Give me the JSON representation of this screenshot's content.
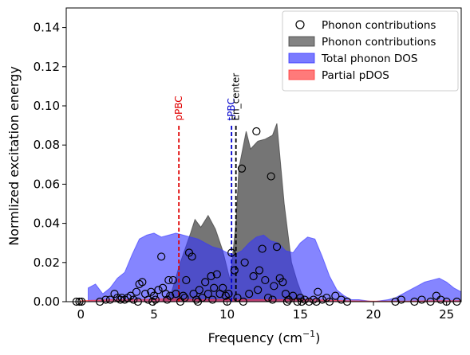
{
  "chart_data": {
    "type": "area",
    "xlabel": "Frequency (cm",
    "xlabel_sup": "−1",
    "xlabel_tail": ")",
    "ylabel": "Normlized excitation energy",
    "xlim": [
      -1,
      26
    ],
    "ylim": [
      0,
      0.15
    ],
    "xticks": [
      0,
      5,
      10,
      15,
      20,
      25
    ],
    "yticks": [
      0.0,
      0.02,
      0.04,
      0.06,
      0.08,
      0.1,
      0.12,
      0.14
    ],
    "xtick_labels": [
      "0",
      "5",
      "10",
      "15",
      "20",
      "25"
    ],
    "ytick_labels": [
      "0.00",
      "0.02",
      "0.04",
      "0.06",
      "0.08",
      "0.10",
      "0.12",
      "0.14"
    ],
    "legend": {
      "position": "top-right",
      "entries": [
        {
          "label": "Phonon contributions",
          "kind": "marker"
        },
        {
          "label": "Phonon contributions",
          "kind": "patch",
          "color": "#404040"
        },
        {
          "label": "Total phonon DOS",
          "kind": "patch",
          "color": "#3333ff"
        },
        {
          "label": "Partial pDOS",
          "kind": "patch",
          "color": "#ff3333"
        }
      ]
    },
    "vlines": [
      {
        "x": 6.7,
        "label": "pPBC",
        "color": "#e00000"
      },
      {
        "x": 10.3,
        "label": "tPBC",
        "color": "#0000cc"
      },
      {
        "x": 10.6,
        "label": "En_center",
        "color": "#000000"
      }
    ],
    "vline_top": 0.09,
    "series": [
      {
        "name": "Phonon contributions",
        "kind": "area",
        "color": "#404040",
        "alpha": 0.72,
        "x": [
          5.5,
          6.2,
          6.8,
          7.5,
          7.8,
          8.2,
          8.7,
          9.2,
          9.7,
          10.2,
          10.6,
          10.8,
          11.3,
          11.6,
          12.1,
          12.6,
          13.1,
          13.4,
          13.9,
          14.4,
          14.8,
          15.3
        ],
        "y": [
          0.0,
          0.005,
          0.02,
          0.035,
          0.042,
          0.038,
          0.044,
          0.037,
          0.026,
          0.011,
          0.04,
          0.068,
          0.087,
          0.078,
          0.082,
          0.083,
          0.085,
          0.091,
          0.05,
          0.02,
          0.01,
          0.0
        ]
      },
      {
        "name": "Total phonon DOS",
        "kind": "area",
        "color": "#3333ff",
        "alpha": 0.6,
        "x": [
          0.5,
          1.0,
          1.5,
          2.0,
          2.5,
          3.0,
          3.5,
          4.0,
          4.5,
          5.0,
          5.5,
          6.0,
          6.5,
          7.0,
          7.5,
          8.0,
          8.5,
          9.0,
          9.5,
          10.0,
          10.5,
          11.0,
          11.5,
          12.0,
          12.5,
          13.0,
          13.5,
          14.0,
          14.5,
          15.0,
          15.5,
          16.0,
          16.5,
          17.0,
          17.5,
          18.0,
          18.5,
          19.0,
          20.0,
          21.0,
          21.5,
          22.0,
          22.5,
          23.0,
          23.5,
          24.0,
          24.5,
          25.0,
          25.5,
          26.0
        ],
        "y": [
          0.007,
          0.009,
          0.004,
          0.007,
          0.012,
          0.015,
          0.024,
          0.032,
          0.034,
          0.035,
          0.033,
          0.034,
          0.035,
          0.034,
          0.033,
          0.032,
          0.03,
          0.028,
          0.027,
          0.025,
          0.024,
          0.026,
          0.03,
          0.033,
          0.034,
          0.031,
          0.03,
          0.026,
          0.025,
          0.03,
          0.033,
          0.032,
          0.023,
          0.013,
          0.006,
          0.003,
          0.001,
          0.001,
          0.0,
          0.001,
          0.002,
          0.004,
          0.006,
          0.008,
          0.01,
          0.011,
          0.012,
          0.01,
          0.007,
          0.005
        ]
      },
      {
        "name": "Partial pDOS",
        "kind": "area",
        "color": "#ff3333",
        "alpha": 0.6,
        "x": [
          0.0,
          2.0,
          4.0,
          6.0,
          8.0,
          10.0,
          12.0,
          14.0,
          16.0,
          18.0,
          20.0,
          22.0,
          24.0,
          26.0
        ],
        "y": [
          0.0005,
          0.001,
          0.001,
          0.0015,
          0.001,
          0.001,
          0.001,
          0.001,
          0.001,
          0.0005,
          0.0003,
          0.0003,
          0.0005,
          0.0005
        ]
      },
      {
        "name": "Phonon contributions",
        "kind": "scatter",
        "x": [
          -0.3,
          -0.1,
          0.05,
          1.3,
          1.7,
          2.0,
          2.3,
          2.5,
          2.7,
          3.0,
          3.2,
          3.4,
          3.6,
          3.8,
          4.0,
          4.2,
          4.4,
          4.6,
          4.8,
          5.0,
          5.1,
          5.3,
          5.5,
          5.6,
          5.8,
          6.0,
          6.1,
          6.3,
          6.5,
          6.8,
          7.0,
          7.2,
          7.4,
          7.6,
          7.7,
          7.9,
          8.1,
          8.3,
          8.5,
          8.7,
          8.9,
          9.1,
          9.3,
          9.5,
          9.7,
          9.9,
          10.1,
          10.3,
          10.5,
          10.7,
          11.0,
          11.2,
          11.5,
          11.8,
          12.0,
          12.2,
          12.4,
          12.6,
          12.8,
          13.0,
          13.2,
          13.4,
          13.6,
          13.8,
          14.0,
          14.2,
          14.5,
          14.8,
          15.0,
          15.3,
          15.6,
          15.9,
          16.2,
          16.5,
          16.8,
          17.0,
          17.4,
          17.8,
          18.2,
          21.5,
          21.9,
          22.8,
          23.3,
          23.9,
          24.3,
          24.6,
          25.0,
          25.7,
          2.8,
          3.9,
          4.9,
          5.9,
          7.1,
          8.0,
          9.0,
          10.0,
          11.1,
          12.1,
          13.1,
          14.1,
          15.1,
          16.1
        ],
        "y": [
          0.0,
          0.0,
          0.0,
          0.0,
          0.001,
          0.001,
          0.004,
          0.002,
          0.001,
          0.001,
          0.002,
          0.003,
          0.001,
          0.005,
          0.009,
          0.01,
          0.004,
          0.001,
          0.005,
          0.003,
          0.001,
          0.006,
          0.023,
          0.007,
          0.004,
          0.011,
          0.003,
          0.011,
          0.004,
          0.0,
          0.003,
          0.011,
          0.025,
          0.023,
          0.004,
          0.001,
          0.006,
          0.002,
          0.01,
          0.004,
          0.013,
          0.007,
          0.014,
          0.004,
          0.007,
          0.003,
          0.004,
          0.025,
          0.016,
          0.002,
          0.068,
          0.02,
          0.004,
          0.013,
          0.087,
          0.016,
          0.027,
          0.011,
          0.002,
          0.064,
          0.008,
          0.028,
          0.012,
          0.01,
          0.004,
          0.001,
          0.003,
          0.0,
          0.002,
          0.001,
          0.0,
          0.001,
          0.005,
          0.001,
          0.002,
          0.0,
          0.003,
          0.001,
          0.0,
          0.0,
          0.001,
          0.0,
          0.001,
          0.0,
          0.003,
          0.001,
          0.0,
          0.0,
          0.002,
          0.0,
          0.0,
          0.001,
          0.002,
          0.0,
          0.001,
          0.0,
          0.0,
          0.006,
          0.001,
          0.0,
          0.0,
          0.0
        ]
      }
    ]
  }
}
